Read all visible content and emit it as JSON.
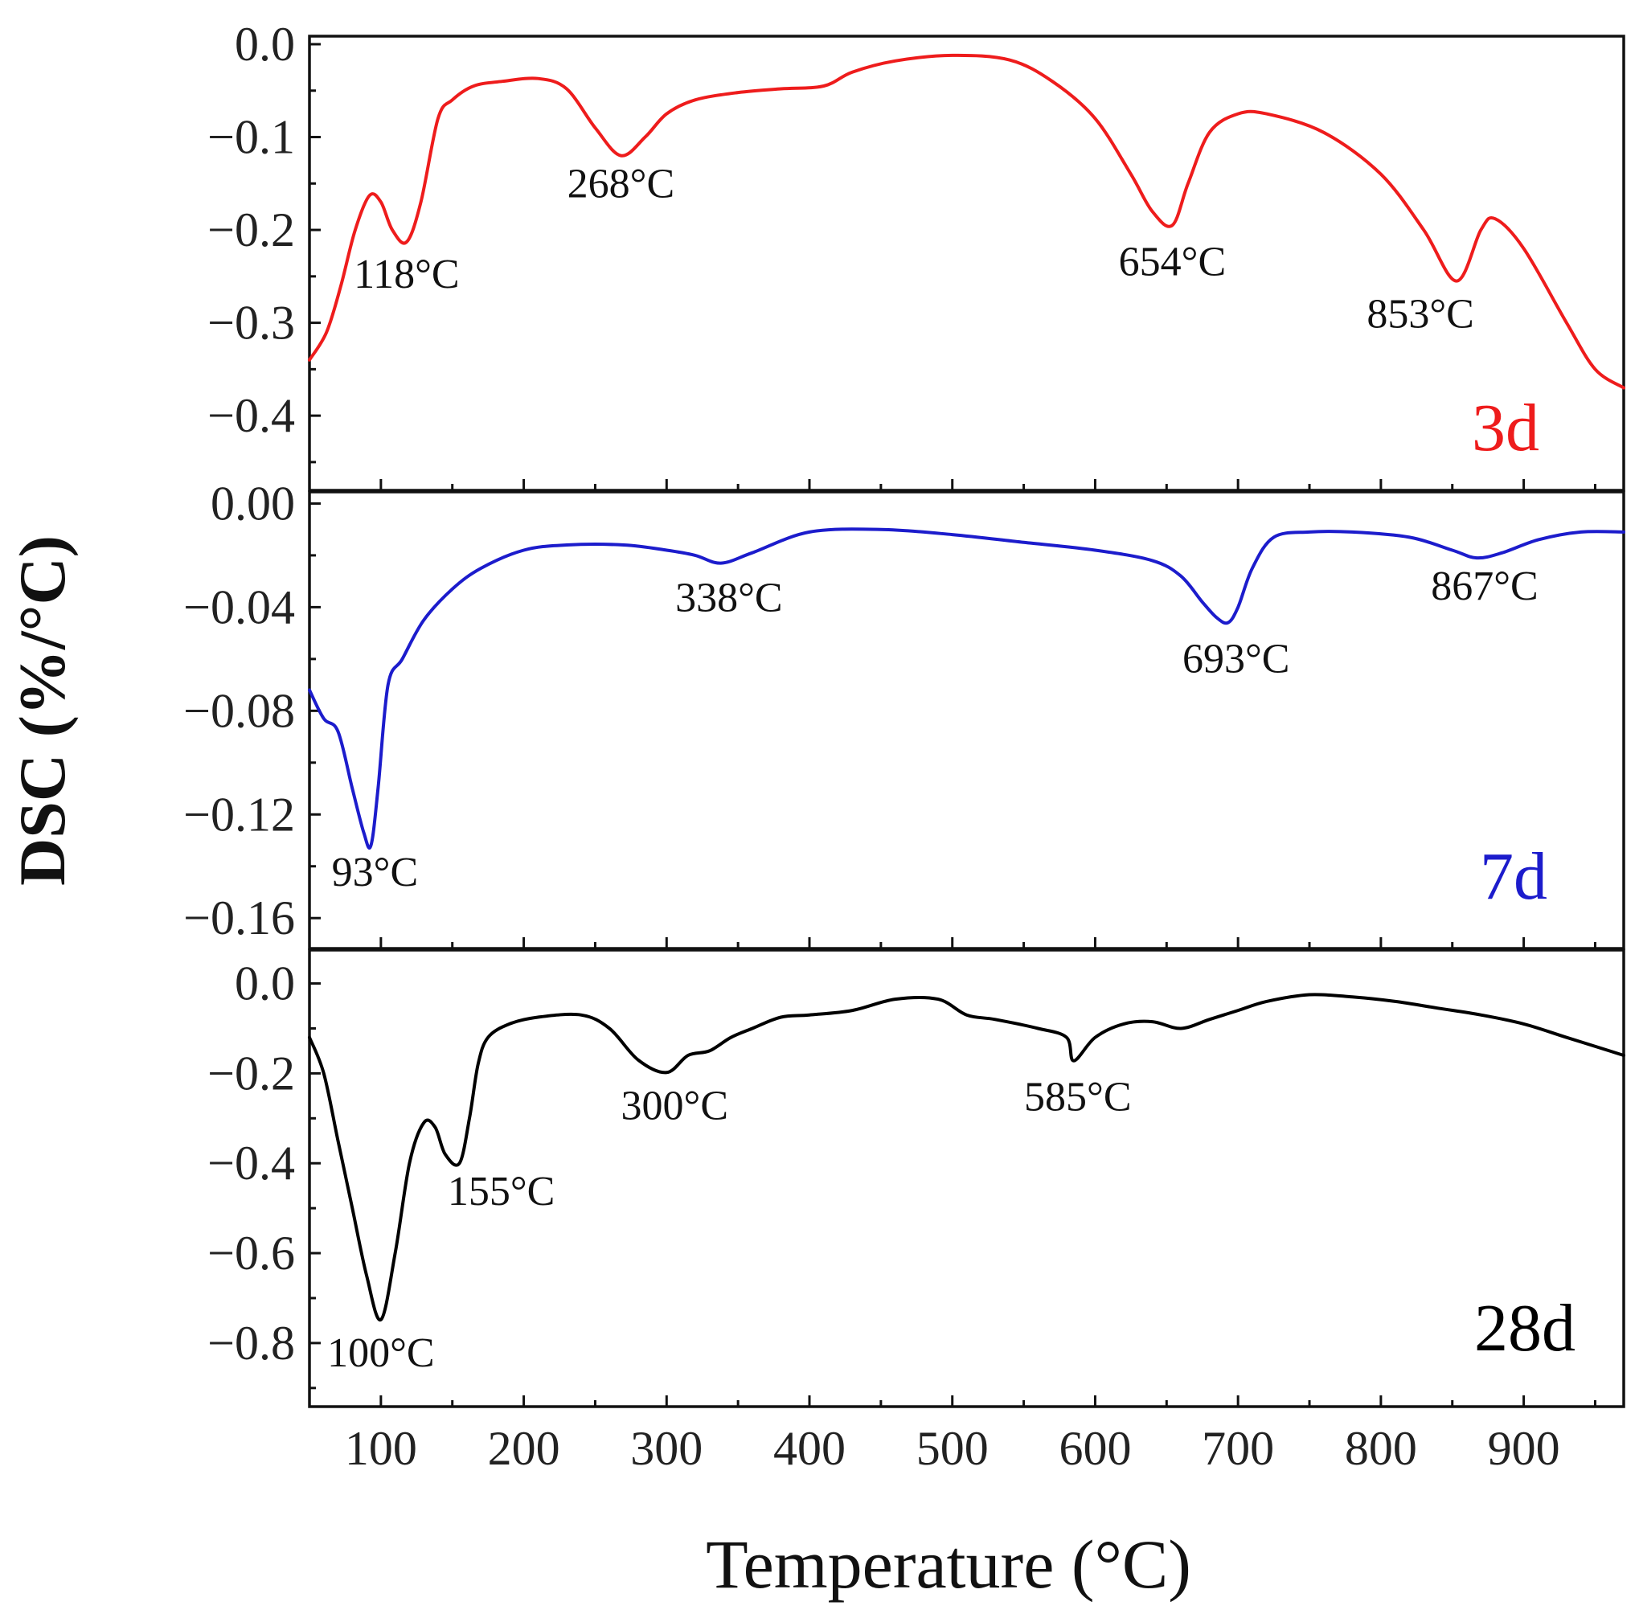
{
  "chart_data": {
    "type": "line",
    "xlabel": "Temperature (°C)",
    "ylabel": "DSC (%/°C)",
    "xlim": [
      50,
      970
    ],
    "x_ticks": [
      100,
      200,
      300,
      400,
      500,
      600,
      700,
      800,
      900
    ],
    "x_tick_labels": [
      "100",
      "200",
      "300",
      "400",
      "500",
      "600",
      "700",
      "800",
      "900"
    ],
    "panels": [
      {
        "label": "3d",
        "color": "#ee1c1c",
        "ylim": [
          -0.47,
          0.0
        ],
        "y_ticks": [
          0.0,
          -0.1,
          -0.2,
          -0.3,
          -0.4
        ],
        "y_tick_labels": [
          "0.0",
          "−0.1",
          "−0.2",
          "−0.3",
          "−0.4"
        ],
        "annotations": [
          {
            "text": "118°C",
            "x": 118,
            "y": -0.212
          },
          {
            "text": "268°C",
            "x": 268,
            "y": -0.12
          },
          {
            "text": "654°C",
            "x": 654,
            "y": -0.195
          },
          {
            "text": "853°C",
            "x": 853,
            "y": -0.255
          }
        ],
        "series": {
          "x": [
            50,
            62,
            72,
            82,
            92,
            100,
            108,
            118,
            128,
            140,
            150,
            165,
            185,
            210,
            230,
            250,
            268,
            285,
            300,
            320,
            350,
            380,
            410,
            430,
            460,
            500,
            540,
            570,
            600,
            625,
            640,
            654,
            665,
            680,
            700,
            720,
            760,
            800,
            830,
            853,
            870,
            880,
            900,
            930,
            950,
            970
          ],
          "y": [
            -0.34,
            -0.31,
            -0.26,
            -0.2,
            -0.163,
            -0.17,
            -0.2,
            -0.213,
            -0.17,
            -0.08,
            -0.06,
            -0.045,
            -0.04,
            -0.037,
            -0.048,
            -0.09,
            -0.12,
            -0.1,
            -0.075,
            -0.06,
            -0.052,
            -0.048,
            -0.045,
            -0.03,
            -0.018,
            -0.012,
            -0.017,
            -0.04,
            -0.08,
            -0.14,
            -0.18,
            -0.195,
            -0.15,
            -0.095,
            -0.075,
            -0.075,
            -0.095,
            -0.14,
            -0.2,
            -0.255,
            -0.2,
            -0.188,
            -0.22,
            -0.3,
            -0.35,
            -0.37
          ]
        }
      },
      {
        "label": "7d",
        "color": "#1c1ccc",
        "ylim": [
          -0.168,
          0.002
        ],
        "y_ticks": [
          0.0,
          -0.04,
          -0.08,
          -0.12,
          -0.16
        ],
        "y_tick_labels": [
          "0.00",
          "−0.04",
          "−0.08",
          "−0.12",
          "−0.16"
        ],
        "annotations": [
          {
            "text": "93°C",
            "x": 93,
            "y": -0.132
          },
          {
            "text": "338°C",
            "x": 338,
            "y": -0.023
          },
          {
            "text": "693°C",
            "x": 693,
            "y": -0.046
          },
          {
            "text": "867°C",
            "x": 867,
            "y": -0.021
          }
        ],
        "series": {
          "x": [
            50,
            60,
            70,
            80,
            88,
            93,
            98,
            105,
            115,
            130,
            150,
            170,
            200,
            230,
            270,
            300,
            320,
            338,
            360,
            400,
            450,
            500,
            550,
            600,
            640,
            660,
            675,
            685,
            693,
            700,
            710,
            725,
            750,
            780,
            820,
            850,
            867,
            885,
            910,
            940,
            970
          ],
          "y": [
            -0.072,
            -0.083,
            -0.088,
            -0.11,
            -0.127,
            -0.132,
            -0.11,
            -0.07,
            -0.06,
            -0.045,
            -0.033,
            -0.025,
            -0.018,
            -0.016,
            -0.016,
            -0.018,
            -0.02,
            -0.023,
            -0.019,
            -0.011,
            -0.01,
            -0.012,
            -0.015,
            -0.018,
            -0.022,
            -0.028,
            -0.038,
            -0.044,
            -0.046,
            -0.04,
            -0.025,
            -0.013,
            -0.011,
            -0.011,
            -0.013,
            -0.018,
            -0.021,
            -0.019,
            -0.014,
            -0.011,
            -0.011
          ]
        }
      },
      {
        "label": "28d",
        "color": "#000000",
        "ylim": [
          -0.92,
          0.06
        ],
        "y_ticks": [
          0.0,
          -0.2,
          -0.4,
          -0.6,
          -0.8
        ],
        "y_tick_labels": [
          "0.0",
          "−0.2",
          "−0.4",
          "−0.6",
          "−0.8"
        ],
        "annotations": [
          {
            "text": "100°C",
            "x": 100,
            "y": -0.748
          },
          {
            "text": "155°C",
            "x": 155,
            "y": -0.4
          },
          {
            "text": "300°C",
            "x": 300,
            "y": -0.198
          },
          {
            "text": "585°C",
            "x": 585,
            "y": -0.172
          }
        ],
        "series": {
          "x": [
            50,
            60,
            70,
            80,
            90,
            100,
            110,
            120,
            130,
            138,
            145,
            155,
            162,
            168,
            175,
            190,
            210,
            240,
            260,
            280,
            300,
            315,
            330,
            345,
            360,
            380,
            400,
            430,
            460,
            490,
            510,
            530,
            560,
            580,
            585,
            600,
            620,
            640,
            660,
            680,
            700,
            720,
            750,
            780,
            810,
            840,
            870,
            900,
            930,
            960,
            970
          ],
          "y": [
            -0.12,
            -0.2,
            -0.35,
            -0.5,
            -0.65,
            -0.748,
            -0.6,
            -0.4,
            -0.31,
            -0.32,
            -0.38,
            -0.4,
            -0.3,
            -0.18,
            -0.12,
            -0.09,
            -0.075,
            -0.07,
            -0.1,
            -0.17,
            -0.198,
            -0.16,
            -0.15,
            -0.12,
            -0.1,
            -0.075,
            -0.07,
            -0.06,
            -0.035,
            -0.035,
            -0.07,
            -0.08,
            -0.1,
            -0.12,
            -0.172,
            -0.12,
            -0.09,
            -0.085,
            -0.1,
            -0.08,
            -0.06,
            -0.04,
            -0.025,
            -0.03,
            -0.04,
            -0.055,
            -0.07,
            -0.09,
            -0.12,
            -0.15,
            -0.16
          ]
        }
      }
    ]
  }
}
